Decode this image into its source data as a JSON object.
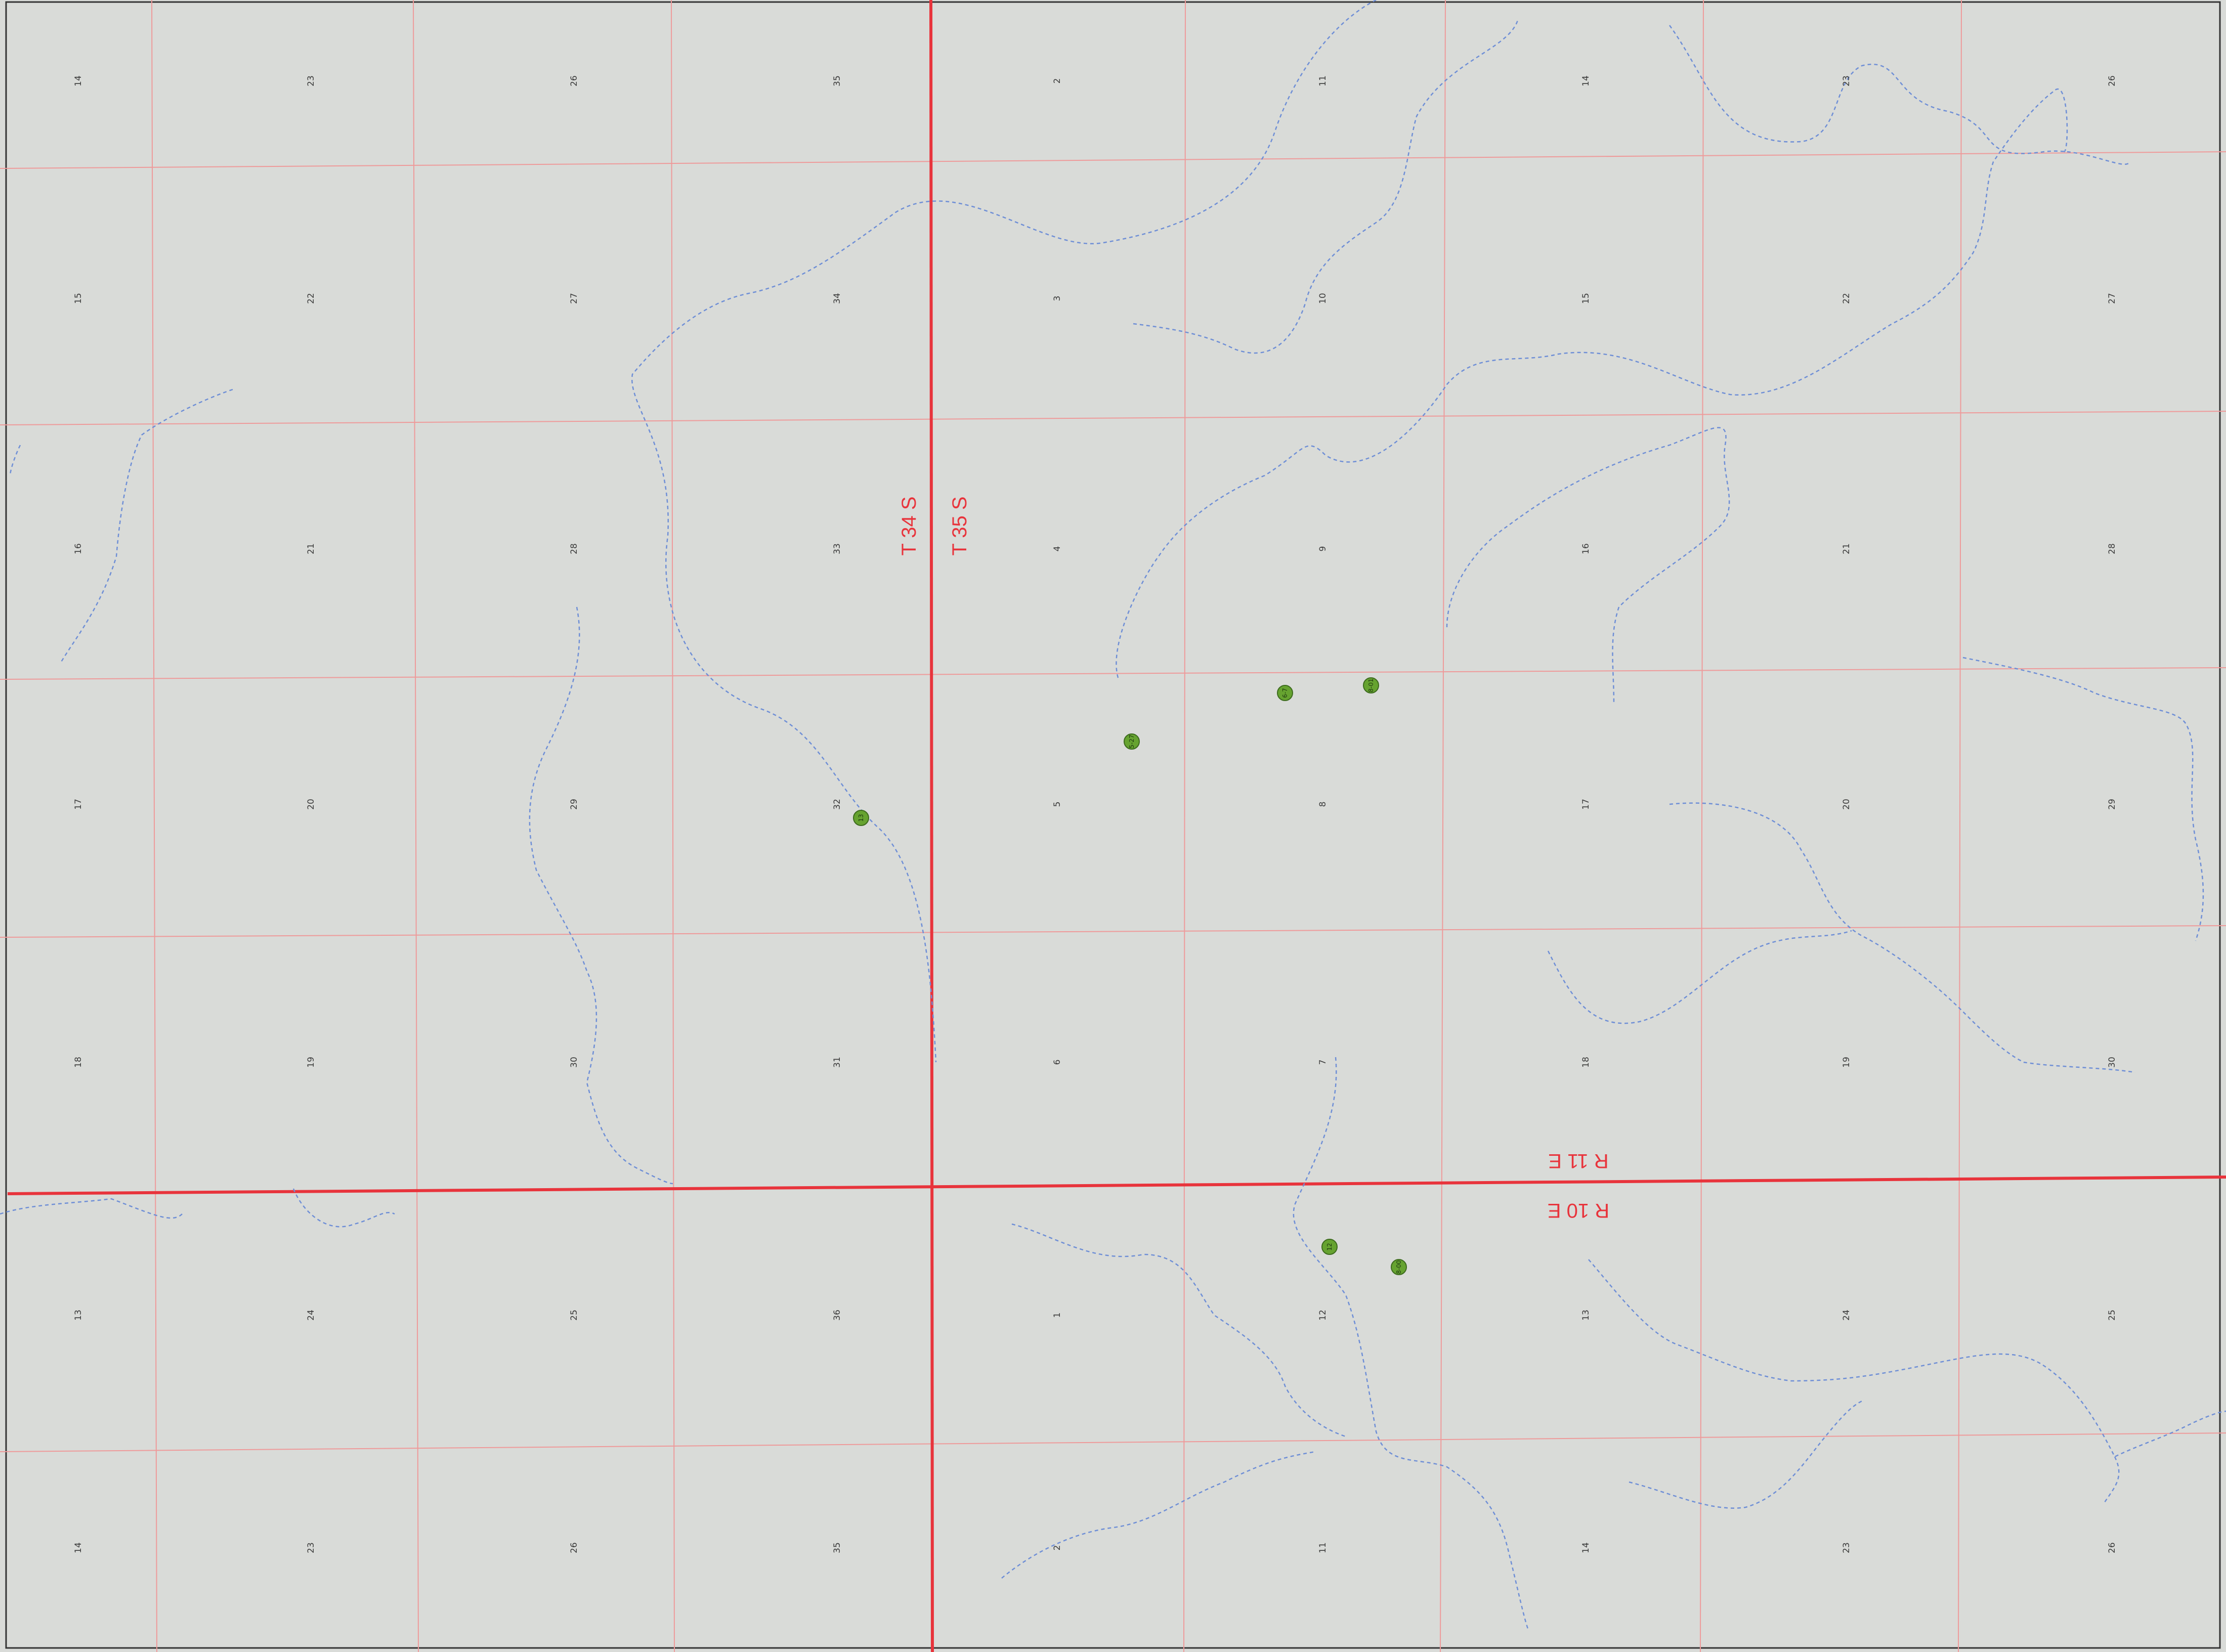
{
  "map": {
    "colors": {
      "background": "#d9dbd8",
      "section_line": "#ee9a9a",
      "township_line": "#e8343c",
      "stream": "#6f8fd6",
      "well": "#66a330",
      "well_outline": "#3d6b1e",
      "frame": "#333333"
    },
    "township_labels": {
      "north": "T 34 S",
      "south": "T 35 S",
      "range_east": "R 11 E",
      "range_west": "R 10 E"
    },
    "section_rows": [
      [
        "14",
        "23",
        "26",
        "35",
        "2",
        "11",
        "14",
        "23",
        "26"
      ],
      [
        "15",
        "22",
        "27",
        "34",
        "3",
        "10",
        "15",
        "22",
        "27"
      ],
      [
        "16",
        "21",
        "28",
        "33",
        "4",
        "9",
        "16",
        "21",
        "28"
      ],
      [
        "17",
        "20",
        "29",
        "32",
        "5",
        "8",
        "17",
        "20",
        "29"
      ],
      [
        "18",
        "19",
        "30",
        "31",
        "6",
        "7",
        "18",
        "19",
        "30"
      ],
      [
        "13",
        "24",
        "25",
        "36",
        "1",
        "12",
        "13",
        "24",
        "25"
      ],
      [
        "14",
        "23",
        "26",
        "35",
        "2",
        "11",
        "14",
        "23",
        "26"
      ]
    ],
    "wells": [
      {
        "id": "well-1",
        "label": "13"
      },
      {
        "id": "well-2",
        "label": "5-27"
      },
      {
        "id": "well-3",
        "label": "6-7"
      },
      {
        "id": "well-4",
        "label": "8-01"
      },
      {
        "id": "well-5",
        "label": "12"
      },
      {
        "id": "well-6",
        "label": "8-00"
      }
    ]
  }
}
